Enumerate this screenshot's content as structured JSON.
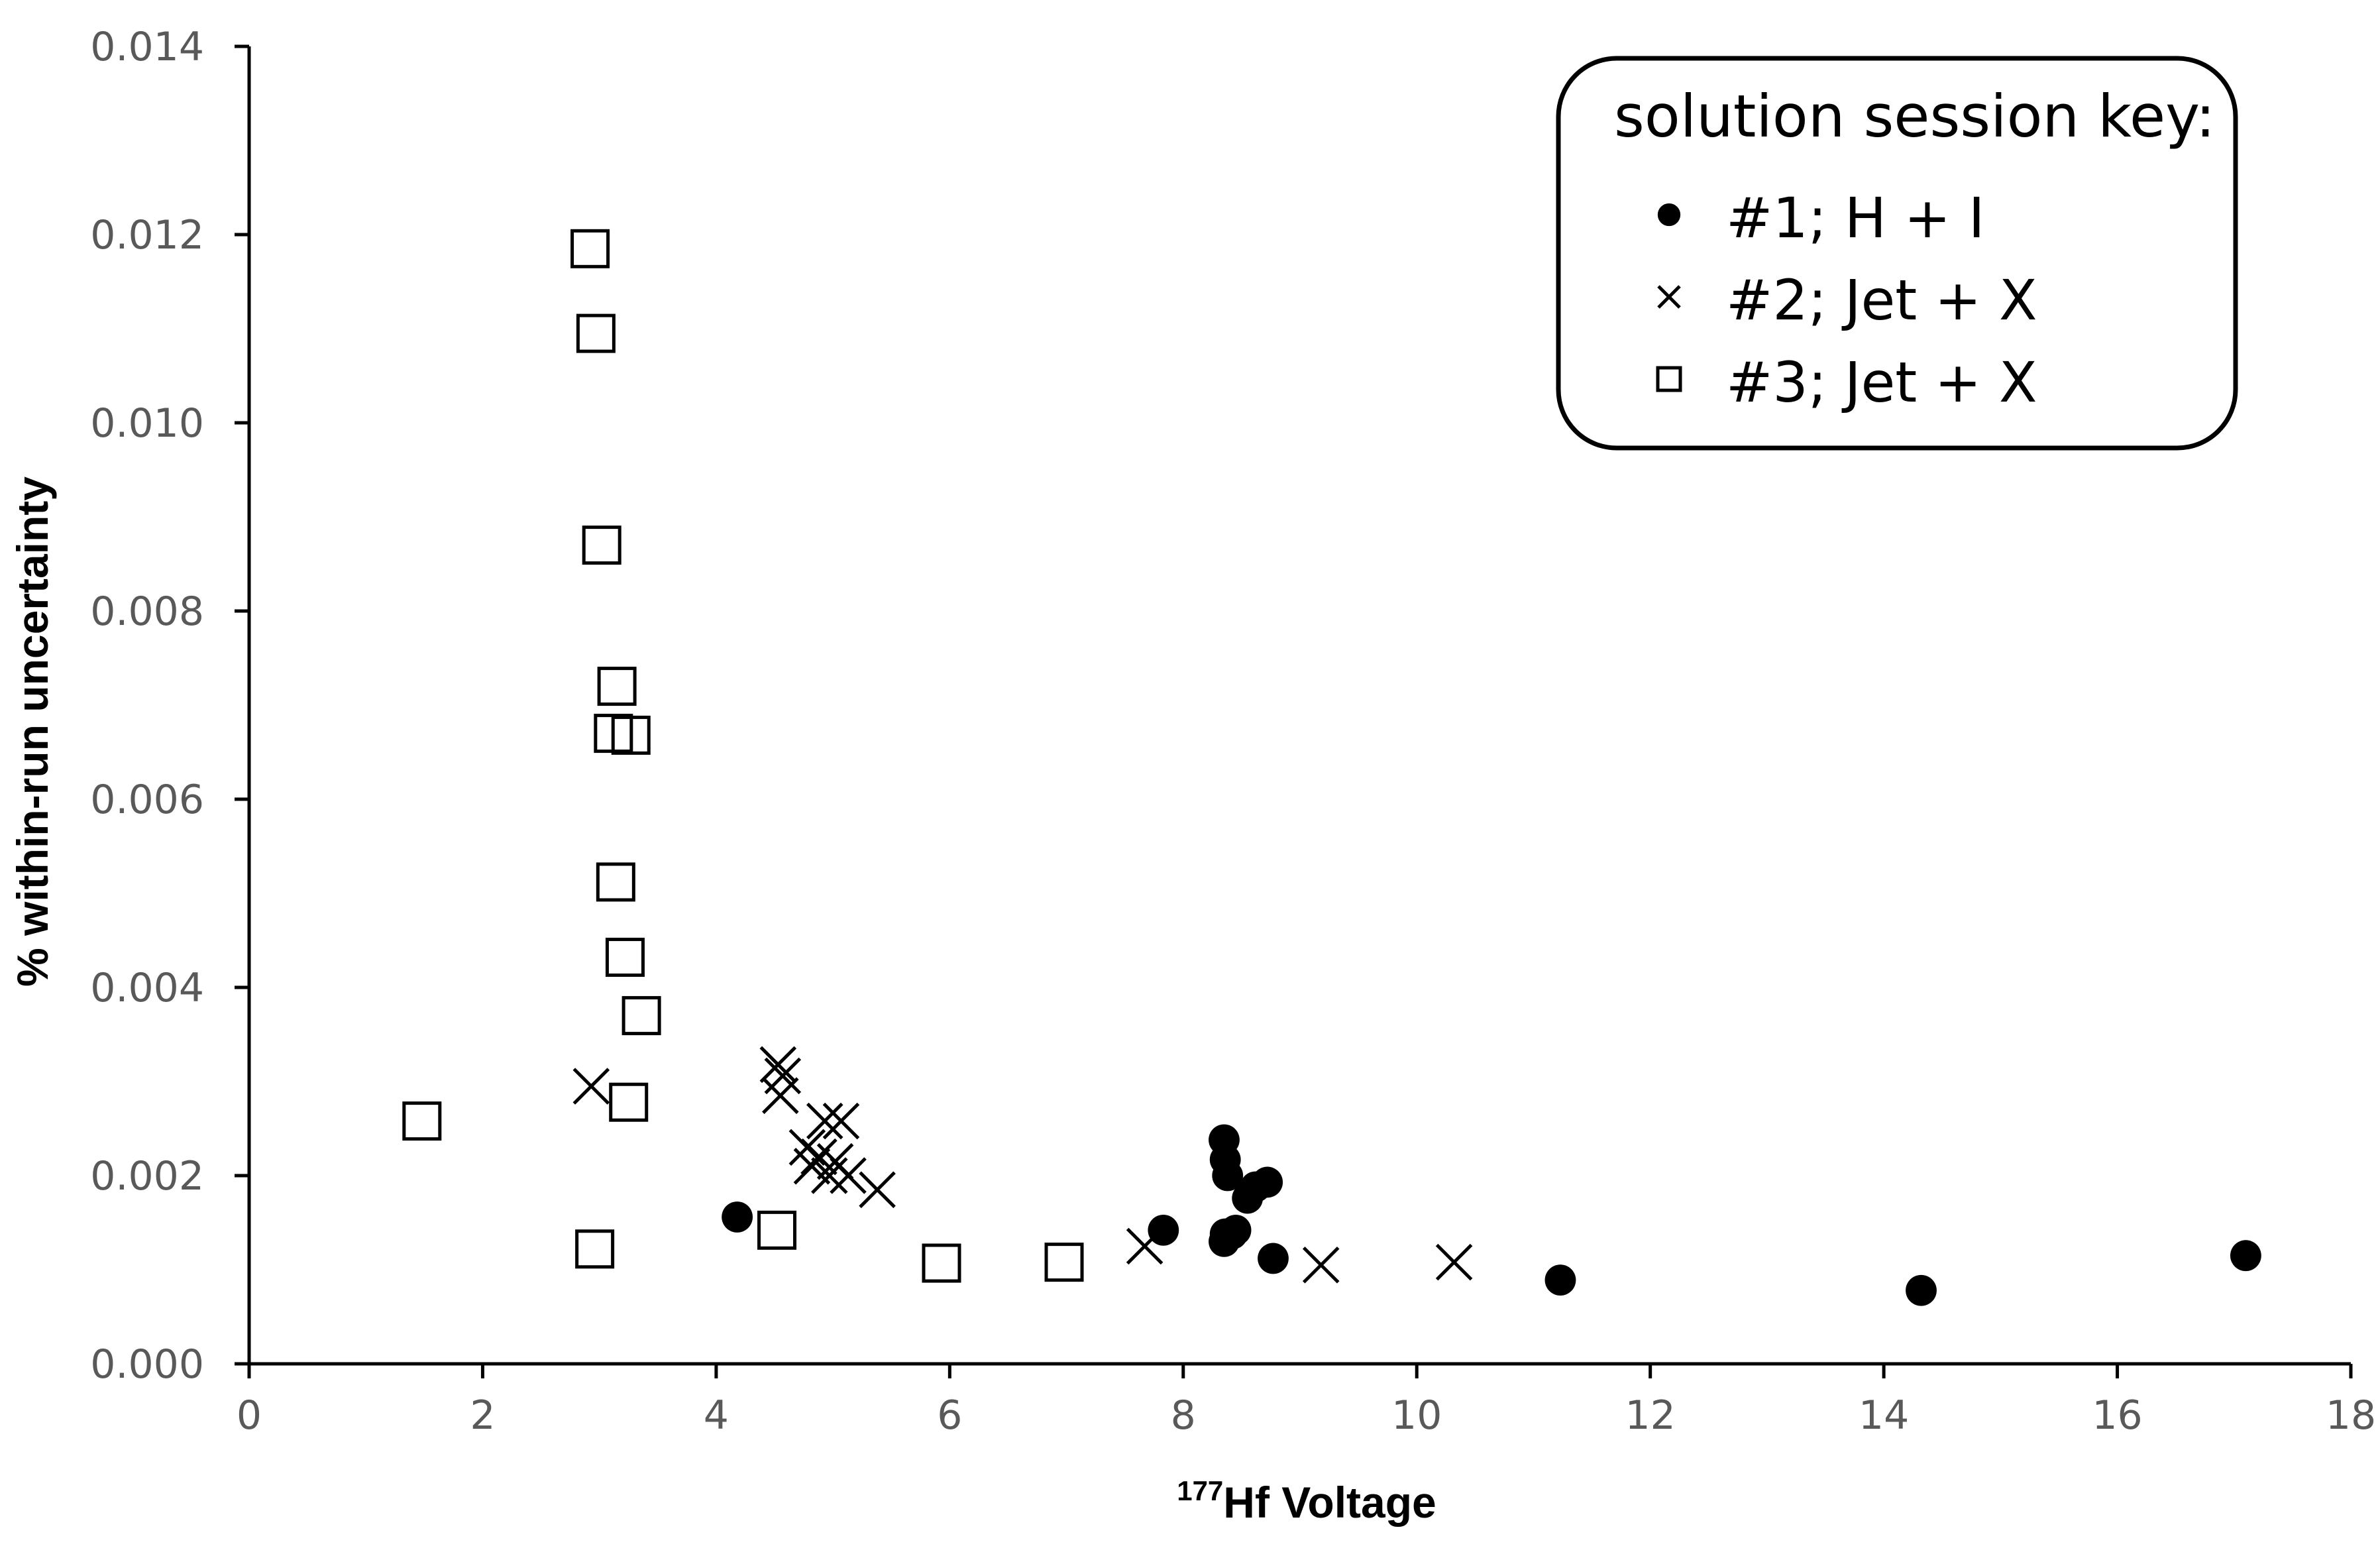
{
  "chart_data": {
    "type": "scatter",
    "xlabel_sup": "177",
    "xlabel": "Hf Voltage",
    "ylabel": "% within-run uncertainty",
    "xlim": [
      0,
      18
    ],
    "ylim": [
      0,
      0.014
    ],
    "xticks": [
      "0",
      "2",
      "4",
      "6",
      "8",
      "10",
      "12",
      "14",
      "16",
      "18"
    ],
    "yticks": [
      "0.000",
      "0.002",
      "0.004",
      "0.006",
      "0.008",
      "0.010",
      "0.012",
      "0.014"
    ],
    "grid": false,
    "legend": {
      "title": "solution session key:",
      "position": "top-right",
      "entries": [
        "#1; H + I",
        "#2; Jet + X",
        "#3; Jet + X"
      ]
    },
    "series": [
      {
        "name": "#1; H + I",
        "marker": "filled-circle",
        "color": "#000000",
        "x": [
          4.18,
          7.83,
          8.35,
          8.36,
          8.38,
          8.36,
          8.42,
          8.45,
          8.55,
          8.62,
          8.72,
          8.35,
          8.77,
          11.23,
          14.32,
          17.1
        ],
        "y": [
          0.00156,
          0.00142,
          0.00238,
          0.00217,
          0.002,
          0.00138,
          0.00138,
          0.00142,
          0.00176,
          0.00188,
          0.00193,
          0.0013,
          0.00112,
          0.00089,
          0.00078,
          0.00115
        ]
      },
      {
        "name": "#2; Jet + X",
        "marker": "x",
        "color": "#000000",
        "x": [
          2.93,
          4.53,
          4.57,
          4.55,
          4.78,
          4.82,
          4.88,
          4.93,
          4.97,
          5.02,
          5.07,
          5.13,
          5.38,
          7.67,
          9.18,
          10.32
        ],
        "y": [
          0.00295,
          0.00318,
          0.00306,
          0.00285,
          0.0023,
          0.0021,
          0.0022,
          0.00258,
          0.002,
          0.00215,
          0.00258,
          0.002,
          0.00185,
          0.00125,
          0.00105,
          0.00108
        ]
      },
      {
        "name": "#3; Jet + X",
        "marker": "open-square",
        "color": "#000000",
        "x": [
          1.48,
          2.92,
          2.97,
          3.02,
          3.15,
          3.12,
          3.27,
          3.14,
          3.22,
          3.36,
          3.25,
          2.96,
          4.52,
          5.93,
          6.98
        ],
        "y": [
          0.00258,
          0.01185,
          0.01095,
          0.0087,
          0.0072,
          0.0067,
          0.00668,
          0.00512,
          0.00432,
          0.0037,
          0.00278,
          0.00122,
          0.00142,
          0.00107,
          0.00108
        ]
      }
    ]
  }
}
